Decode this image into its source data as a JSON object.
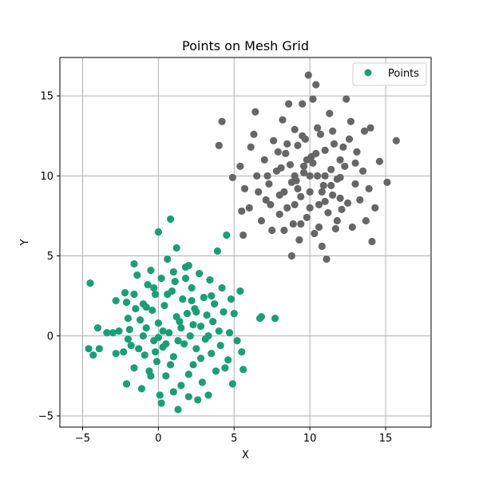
{
  "chart_data": {
    "type": "scatter",
    "title": "Points on Mesh Grid",
    "xlabel": "X",
    "ylabel": "Y",
    "xlim": [
      -6.5,
      18
    ],
    "ylim": [
      -5.7,
      17.4
    ],
    "xticks": [
      -5,
      0,
      5,
      10,
      15
    ],
    "yticks": [
      -5,
      0,
      5,
      10,
      15
    ],
    "grid": true,
    "legend": {
      "placement": "top-right",
      "entries": [
        "Points"
      ]
    },
    "colors": {
      "cluster_a": "#1b9e77",
      "cluster_b": "#666666"
    },
    "series": [
      {
        "name": "Points",
        "clusters": [
          {
            "color": "#1b9e77",
            "points": [
              [
                -4.5,
                3.3
              ],
              [
                -4.3,
                -1.2
              ],
              [
                -4.6,
                -0.8
              ],
              [
                -3.9,
                -0.8
              ],
              [
                -4.0,
                0.5
              ],
              [
                -3.4,
                0.2
              ],
              [
                -3.0,
                0.2
              ],
              [
                -2.8,
                -1.1
              ],
              [
                -2.8,
                2.2
              ],
              [
                -2.6,
                0.3
              ],
              [
                -2.3,
                -1.0
              ],
              [
                -2.2,
                2.7
              ],
              [
                -2.1,
                2.1
              ],
              [
                -2.0,
                1.1
              ],
              [
                -2.1,
                -3.0
              ],
              [
                -1.9,
                0.4
              ],
              [
                -1.8,
                -0.6
              ],
              [
                -1.6,
                -2.0
              ],
              [
                -1.5,
                1.7
              ],
              [
                -1.6,
                4.5
              ],
              [
                -1.4,
                3.8
              ],
              [
                -1.3,
                -0.8
              ],
              [
                -1.2,
                1.0
              ],
              [
                -1.1,
                -3.3
              ],
              [
                -1.0,
                2.0
              ],
              [
                -0.9,
                -1.2
              ],
              [
                -0.8,
                0.5
              ],
              [
                -0.7,
                3.2
              ],
              [
                -0.6,
                -2.2
              ],
              [
                -0.5,
                4.1
              ],
              [
                -0.4,
                1.6
              ],
              [
                -0.3,
                -0.3
              ],
              [
                -0.2,
                2.6
              ],
              [
                -0.1,
                -1.6
              ],
              [
                0.0,
                0.8
              ],
              [
                0.0,
                6.5
              ],
              [
                0.1,
                -3.7
              ],
              [
                0.2,
                3.6
              ],
              [
                0.3,
                -0.7
              ],
              [
                0.4,
                1.9
              ],
              [
                0.5,
                -2.5
              ],
              [
                0.6,
                4.8
              ],
              [
                0.7,
                0.2
              ],
              [
                0.8,
                7.3
              ],
              [
                0.9,
                2.8
              ],
              [
                1.0,
                -1.3
              ],
              [
                1.1,
                3.4
              ],
              [
                1.2,
                5.5
              ],
              [
                1.3,
                -4.6
              ],
              [
                1.4,
                0.9
              ],
              [
                1.5,
                -3.1
              ],
              [
                1.6,
                2.3
              ],
              [
                1.7,
                -0.5
              ],
              [
                1.8,
                4.3
              ],
              [
                1.9,
                1.4
              ],
              [
                2.0,
                -2.4
              ],
              [
                2.1,
                0.0
              ],
              [
                2.2,
                3.0
              ],
              [
                2.3,
                -1.8
              ],
              [
                2.4,
                1.7
              ],
              [
                2.5,
                -0.8
              ],
              [
                2.6,
                -4.0
              ],
              [
                2.7,
                3.9
              ],
              [
                2.8,
                0.6
              ],
              [
                2.9,
                -2.9
              ],
              [
                3.0,
                2.4
              ],
              [
                3.1,
                -0.2
              ],
              [
                3.2,
                1.3
              ],
              [
                3.3,
                -3.7
              ],
              [
                3.4,
                3.5
              ],
              [
                3.5,
                -1.1
              ],
              [
                3.6,
                0.9
              ],
              [
                3.7,
                2.0
              ],
              [
                3.8,
                -2.2
              ],
              [
                3.9,
                5.3
              ],
              [
                4.0,
                0.3
              ],
              [
                4.1,
                -0.6
              ],
              [
                4.2,
                3.0
              ],
              [
                4.3,
                1.5
              ],
              [
                4.4,
                -2.0
              ],
              [
                4.5,
                6.3
              ],
              [
                4.6,
                -1.5
              ],
              [
                4.7,
                0.2
              ],
              [
                4.8,
                2.3
              ],
              [
                4.9,
                -3.0
              ],
              [
                5.0,
                1.4
              ],
              [
                5.2,
                -0.3
              ],
              [
                5.4,
                2.8
              ],
              [
                5.5,
                -1.0
              ],
              [
                5.6,
                -2.1
              ],
              [
                6.7,
                1.1
              ],
              [
                6.8,
                1.2
              ],
              [
                7.7,
                1.1
              ],
              [
                0.2,
                -4.2
              ],
              [
                1.0,
                -3.5
              ],
              [
                2.0,
                -3.8
              ],
              [
                -0.5,
                -2.5
              ],
              [
                0.5,
                -0.5
              ],
              [
                1.5,
                0.5
              ],
              [
                2.5,
                1.5
              ],
              [
                3.5,
                2.5
              ],
              [
                0.0,
                -0.1
              ],
              [
                -1.0,
                0.0
              ],
              [
                -2.0,
                -0.2
              ],
              [
                1.2,
                1.2
              ],
              [
                2.2,
                2.2
              ],
              [
                0.6,
                2.6
              ],
              [
                1.8,
                3.6
              ],
              [
                -0.8,
                1.8
              ],
              [
                -1.6,
                2.6
              ],
              [
                0.3,
                0.3
              ],
              [
                1.3,
                -0.3
              ],
              [
                2.3,
                0.7
              ],
              [
                3.3,
                0.0
              ],
              [
                0.8,
                -1.8
              ],
              [
                -0.2,
                -1.0
              ],
              [
                2.8,
                -1.4
              ],
              [
                1.0,
                4.0
              ],
              [
                2.0,
                4.4
              ],
              [
                -0.3,
                3.0
              ]
            ]
          },
          {
            "color": "#666666",
            "points": [
              [
                4.2,
                13.4
              ],
              [
                4.0,
                11.9
              ],
              [
                4.9,
                9.9
              ],
              [
                5.4,
                10.6
              ],
              [
                5.5,
                7.8
              ],
              [
                5.6,
                6.3
              ],
              [
                5.7,
                9.2
              ],
              [
                6.0,
                8.0
              ],
              [
                6.3,
                12.6
              ],
              [
                6.4,
                14.0
              ],
              [
                6.5,
                10.0
              ],
              [
                6.8,
                7.2
              ],
              [
                7.0,
                11.0
              ],
              [
                7.1,
                8.5
              ],
              [
                7.3,
                9.5
              ],
              [
                7.5,
                6.6
              ],
              [
                7.6,
                12.2
              ],
              [
                7.8,
                10.3
              ],
              [
                8.0,
                7.6
              ],
              [
                8.2,
                13.5
              ],
              [
                8.3,
                9.0
              ],
              [
                8.4,
                11.4
              ],
              [
                8.5,
                8.0
              ],
              [
                8.6,
                14.5
              ],
              [
                8.7,
                10.7
              ],
              [
                8.8,
                5.0
              ],
              [
                8.9,
                7.0
              ],
              [
                9.0,
                12.9
              ],
              [
                9.1,
                9.7
              ],
              [
                9.2,
                11.9
              ],
              [
                9.3,
                6.0
              ],
              [
                9.4,
                8.7
              ],
              [
                9.5,
                14.5
              ],
              [
                9.6,
                10.2
              ],
              [
                9.7,
                12.3
              ],
              [
                9.8,
                7.4
              ],
              [
                9.9,
                16.3
              ],
              [
                10.0,
                9.0
              ],
              [
                10.1,
                11.2
              ],
              [
                10.2,
                14.8
              ],
              [
                10.3,
                6.4
              ],
              [
                10.4,
                15.7
              ],
              [
                10.5,
                10.0
              ],
              [
                10.6,
                8.2
              ],
              [
                10.7,
                12.6
              ],
              [
                10.8,
                5.6
              ],
              [
                10.9,
                9.4
              ],
              [
                11.0,
                11.6
              ],
              [
                11.1,
                4.8
              ],
              [
                11.2,
                7.7
              ],
              [
                11.3,
                13.9
              ],
              [
                11.4,
                10.4
              ],
              [
                11.5,
                8.8
              ],
              [
                11.6,
                12.0
              ],
              [
                11.7,
                6.7
              ],
              [
                11.8,
                9.8
              ],
              [
                12.0,
                11.0
              ],
              [
                12.1,
                7.9
              ],
              [
                12.3,
                10.6
              ],
              [
                12.4,
                14.8
              ],
              [
                12.5,
                8.3
              ],
              [
                12.6,
                12.3
              ],
              [
                12.8,
                6.8
              ],
              [
                13.0,
                9.5
              ],
              [
                13.1,
                11.5
              ],
              [
                13.3,
                8.5
              ],
              [
                13.5,
                10.3
              ],
              [
                13.6,
                12.8
              ],
              [
                13.7,
                7.2
              ],
              [
                13.9,
                9.2
              ],
              [
                14.0,
                13.0
              ],
              [
                14.1,
                5.9
              ],
              [
                14.3,
                8.0
              ],
              [
                15.1,
                9.6
              ],
              [
                15.7,
                12.2
              ],
              [
                7.2,
                10.0
              ],
              [
                8.1,
                10.5
              ],
              [
                9.0,
                10.0
              ],
              [
                10.0,
                10.0
              ],
              [
                11.0,
                10.0
              ],
              [
                12.0,
                9.9
              ],
              [
                8.5,
                12.0
              ],
              [
                9.5,
                12.5
              ],
              [
                10.5,
                13.0
              ],
              [
                11.5,
                12.8
              ],
              [
                8.0,
                8.8
              ],
              [
                9.0,
                8.2
              ],
              [
                10.0,
                8.0
              ],
              [
                11.0,
                8.4
              ],
              [
                12.0,
                8.6
              ],
              [
                9.8,
                11.0
              ],
              [
                10.4,
                11.4
              ],
              [
                9.2,
                9.2
              ],
              [
                10.8,
                9.0
              ],
              [
                9.6,
                10.6
              ],
              [
                10.2,
                10.8
              ],
              [
                8.8,
                9.6
              ],
              [
                11.4,
                9.4
              ],
              [
                7.9,
                11.5
              ],
              [
                12.2,
                11.8
              ],
              [
                7.4,
                8.2
              ],
              [
                6.6,
                9.0
              ],
              [
                13.0,
                10.8
              ],
              [
                14.6,
                10.9
              ],
              [
                6.1,
                11.8
              ],
              [
                12.7,
                13.4
              ],
              [
                9.4,
                7.0
              ],
              [
                10.6,
                6.8
              ],
              [
                11.8,
                7.2
              ],
              [
                8.3,
                6.6
              ]
            ]
          }
        ]
      }
    ]
  }
}
